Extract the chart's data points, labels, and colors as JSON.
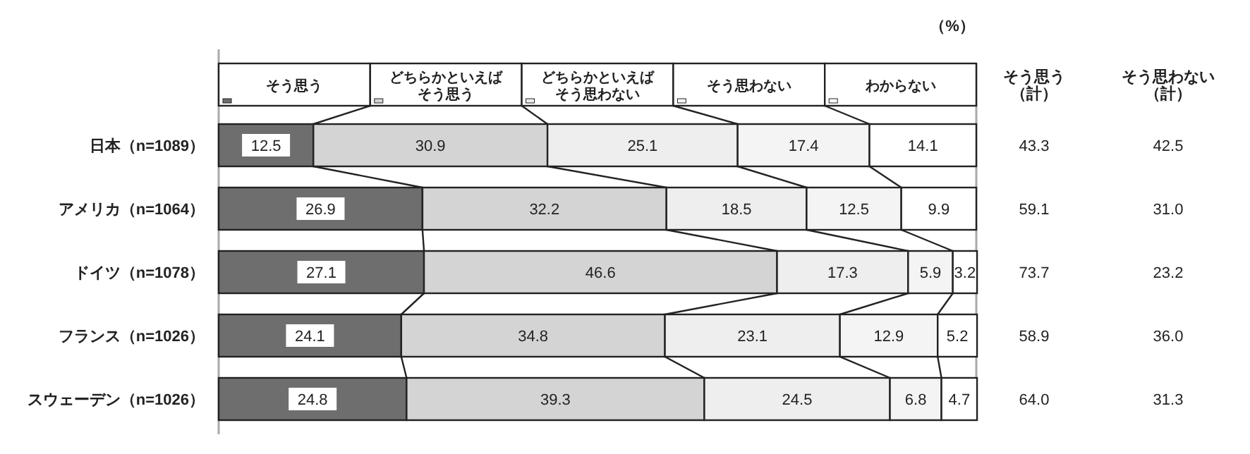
{
  "chart_data": {
    "type": "bar",
    "orientation": "horizontal",
    "stacked": true,
    "legend": "top",
    "data_labels": true,
    "xlim": [
      0,
      100
    ],
    "tick_labels": "y",
    "categories": [
      "日本（n=1089）",
      "アメリカ（n=1064）",
      "ドイツ（n=1078）",
      "フランス（n=1026）",
      "スウェーデン（n=1026）"
    ],
    "series": [
      {
        "name": "そう思う",
        "color": "#6e6e6e",
        "values": [
          12.5,
          26.9,
          27.1,
          24.1,
          24.8
        ]
      },
      {
        "name": "どちらかといえばそう思う",
        "color": "#d4d4d4",
        "values": [
          30.9,
          32.2,
          46.6,
          34.8,
          39.3
        ]
      },
      {
        "name": "どちらかといえばそう思わない",
        "color": "#eeeeee",
        "values": [
          25.1,
          18.5,
          17.3,
          23.1,
          24.5
        ]
      },
      {
        "name": "そう思わない",
        "color": "#f4f4f4",
        "values": [
          17.4,
          12.5,
          5.9,
          12.9,
          6.8
        ]
      },
      {
        "name": "わからない",
        "color": "#ffffff",
        "values": [
          14.1,
          9.9,
          3.2,
          5.2,
          4.7
        ]
      }
    ],
    "annotations": [
      "（%）",
      "そう思う（計）",
      "そう思わない（計）",
      "43.3",
      "42.5",
      "59.1",
      "31.0",
      "73.7",
      "23.2",
      "58.9",
      "36.0",
      "64.0",
      "31.3"
    ]
  }
}
